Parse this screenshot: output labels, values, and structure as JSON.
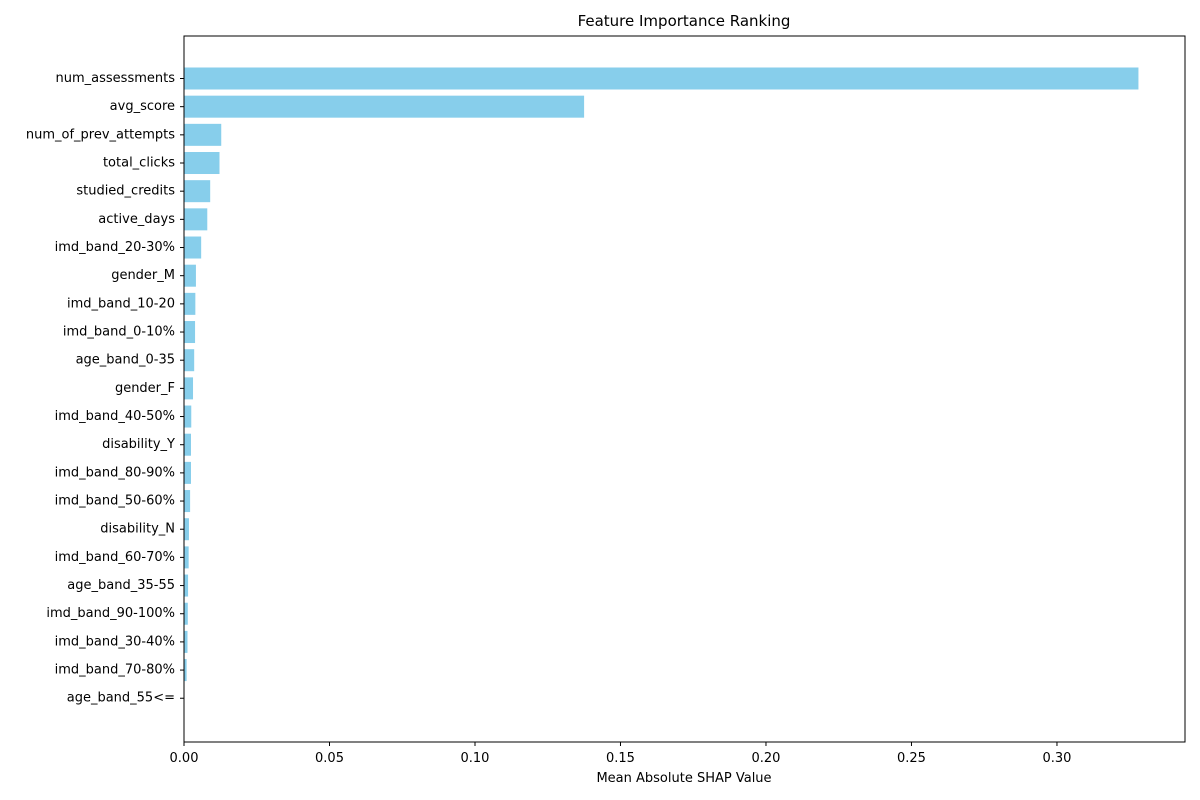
{
  "chart_data": {
    "type": "bar",
    "orientation": "horizontal",
    "title": "Feature Importance Ranking",
    "xlabel": "Mean Absolute SHAP Value",
    "ylabel": "",
    "xlim": [
      0,
      0.344
    ],
    "x_ticks": [
      0.0,
      0.05,
      0.1,
      0.15,
      0.2,
      0.25,
      0.3
    ],
    "x_tick_labels": [
      "0.00",
      "0.05",
      "0.10",
      "0.15",
      "0.20",
      "0.25",
      "0.30"
    ],
    "grid": false,
    "bar_color": "#87ceeb",
    "categories": [
      "num_assessments",
      "avg_score",
      "num_of_prev_attempts",
      "total_clicks",
      "studied_credits",
      "active_days",
      "imd_band_20-30%",
      "gender_M",
      "imd_band_10-20",
      "imd_band_0-10%",
      "age_band_0-35",
      "gender_F",
      "imd_band_40-50%",
      "disability_Y",
      "imd_band_80-90%",
      "imd_band_50-60%",
      "disability_N",
      "imd_band_60-70%",
      "age_band_35-55",
      "imd_band_90-100%",
      "imd_band_30-40%",
      "imd_band_70-80%",
      "age_band_55<="
    ],
    "values": [
      0.328,
      0.1375,
      0.0128,
      0.0122,
      0.009,
      0.008,
      0.0059,
      0.0041,
      0.0039,
      0.0038,
      0.0035,
      0.0031,
      0.0025,
      0.0024,
      0.0024,
      0.0021,
      0.0017,
      0.0016,
      0.0014,
      0.0013,
      0.0012,
      0.0009,
      0.0001
    ]
  }
}
